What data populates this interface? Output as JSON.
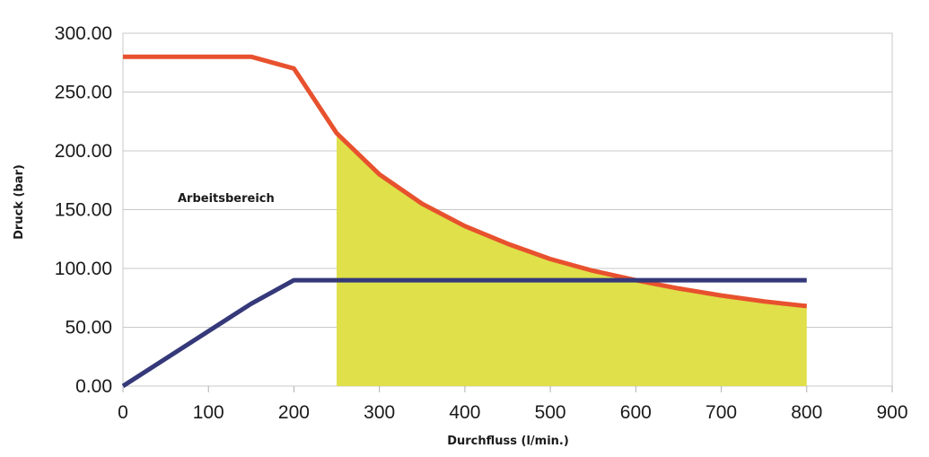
{
  "chart_data": {
    "type": "line",
    "xlabel": "Durchfluss (l/min.)",
    "ylabel": "Druck (bar)",
    "xlim": [
      0,
      900
    ],
    "ylim": [
      0,
      300
    ],
    "x_ticks": [
      "0",
      "100",
      "200",
      "300",
      "400",
      "500",
      "600",
      "700",
      "800",
      "900"
    ],
    "y_ticks": [
      "0.00",
      "50.00",
      "100.00",
      "150.00",
      "200.00",
      "250.00",
      "300.00"
    ],
    "grid": "horizontal",
    "annotation": "Arbeitsbereich",
    "fill_region": {
      "color": "#dfe04a",
      "x_start": 250,
      "x_end": 800
    },
    "series": [
      {
        "color": "#e8512e",
        "points": [
          [
            0,
            280
          ],
          [
            150,
            280
          ],
          [
            200,
            270
          ],
          [
            250,
            215
          ],
          [
            300,
            180
          ],
          [
            350,
            155
          ],
          [
            400,
            136
          ],
          [
            450,
            121
          ],
          [
            500,
            108
          ],
          [
            550,
            98
          ],
          [
            600,
            90
          ],
          [
            650,
            83
          ],
          [
            700,
            77
          ],
          [
            750,
            72
          ],
          [
            800,
            68
          ]
        ]
      },
      {
        "color": "#35397a",
        "points": [
          [
            0,
            0
          ],
          [
            150,
            70
          ],
          [
            200,
            90
          ],
          [
            800,
            90
          ]
        ]
      }
    ]
  }
}
